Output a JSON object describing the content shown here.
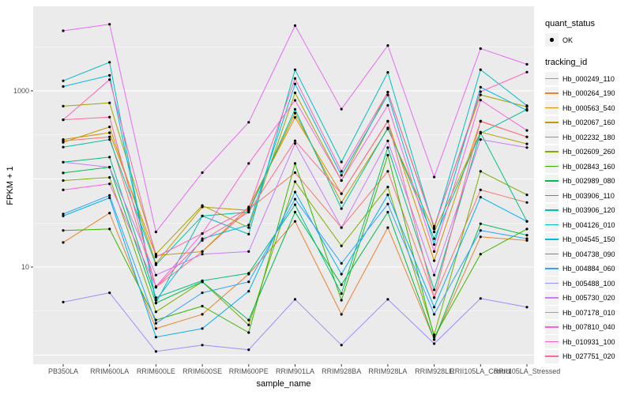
{
  "figure": {
    "background": "#FFFFFF",
    "panel_background": "#EBEBEB",
    "grid_color": "#FFFFFF",
    "tick_label_color": "#4D4D4D",
    "tick_mark_color": "#333333",
    "point_color": "#000000"
  },
  "legend": {
    "quant_status": {
      "title": "quant_status",
      "items": [
        {
          "label": "OK"
        }
      ]
    },
    "tracking_id": {
      "title": "tracking_id"
    }
  },
  "chart_data": {
    "type": "line",
    "title": "",
    "xlabel": "sample_name",
    "ylabel": "FPKM + 1",
    "yscale": "log10",
    "ylim": [
      0.8,
      9000
    ],
    "ytick_values": [
      10,
      1000
    ],
    "ytick_labels": [
      "10",
      "1000"
    ],
    "grid_major_values": [
      1,
      10,
      100,
      1000
    ],
    "grid_minor_values": [
      3.162,
      31.62,
      316.2,
      3162
    ],
    "legend_position": "right",
    "categories": [
      "PB350LA",
      "RRIM600LA",
      "RRIM600LE",
      "RRIM600SE",
      "RRIM600PE",
      "RRIM901LA",
      "RRIM928BA",
      "RRIM928LA",
      "RRIM928LE",
      "RRII105LA_Control",
      "RRII105LA_Stressed"
    ],
    "series": [
      {
        "name": "Hb_000249_110",
        "color": "#F8766D",
        "quant_status": "OK",
        "values": [
          270,
          300,
          5.9,
          15,
          45,
          118,
          28,
          122,
          4.5,
          75,
          54
        ]
      },
      {
        "name": "Hb_000264_190",
        "color": "#EA8331",
        "quant_status": "OK",
        "values": [
          19,
          41,
          2.0,
          2.9,
          8.3,
          33,
          2.9,
          28,
          1.5,
          22,
          20
        ]
      },
      {
        "name": "Hb_000563_540",
        "color": "#D89000",
        "quant_status": "OK",
        "values": [
          280,
          335,
          13.5,
          15,
          48,
          500,
          68,
          450,
          11.8,
          450,
          300
        ]
      },
      {
        "name": "Hb_002067_160",
        "color": "#C09B00",
        "quant_status": "OK",
        "values": [
          260,
          390,
          11,
          48,
          44,
          560,
          54,
          370,
          25,
          340,
          250
        ]
      },
      {
        "name": "Hb_002232_180",
        "color": "#A3A500",
        "quant_status": "OK",
        "values": [
          670,
          730,
          14,
          50,
          28,
          950,
          96,
          970,
          29,
          900,
          660
        ]
      },
      {
        "name": "Hb_002609_260",
        "color": "#7CAE00",
        "quant_status": "OK",
        "values": [
          96,
          104,
          3.1,
          6.8,
          2.2,
          93,
          17.4,
          81,
          1.7,
          122,
          66
        ]
      },
      {
        "name": "Hb_002843_160",
        "color": "#39B600",
        "quant_status": "OK",
        "values": [
          26,
          27,
          2.5,
          3.6,
          1.8,
          150,
          4.2,
          186,
          1.6,
          14,
          27
        ]
      },
      {
        "name": "Hb_002989_080",
        "color": "#00BB4E",
        "quant_status": "OK",
        "values": [
          117,
          136,
          3.9,
          6.8,
          2.5,
          42,
          6.3,
          42,
          1.5,
          31,
          23
        ]
      },
      {
        "name": "Hb_003906_110",
        "color": "#00BF7D",
        "quant_status": "OK",
        "values": [
          155,
          177,
          4.5,
          7.0,
          8.5,
          51,
          5.0,
          227,
          5.5,
          333,
          33
        ]
      },
      {
        "name": "Hb_003906_120",
        "color": "#00C1A3",
        "quant_status": "OK",
        "values": [
          230,
          280,
          10.6,
          38,
          42,
          617,
          46,
          380,
          21,
          330,
          615
        ]
      },
      {
        "name": "Hb_004126_010",
        "color": "#00BFC4",
        "quant_status": "OK",
        "values": [
          1300,
          2110,
          3.9,
          38,
          23.6,
          1740,
          156,
          1620,
          27,
          1740,
          680
        ]
      },
      {
        "name": "Hb_004545_150",
        "color": "#00BAE0",
        "quant_status": "OK",
        "values": [
          1120,
          1500,
          4.2,
          21,
          30,
          1200,
          110,
          900,
          18,
          1100,
          600
        ]
      },
      {
        "name": "Hb_004738_090",
        "color": "#00B0F6",
        "quant_status": "OK",
        "values": [
          38,
          61,
          1.6,
          2.0,
          5.3,
          71,
          8.3,
          66,
          3.5,
          62,
          33
        ]
      },
      {
        "name": "Hb_004884_060",
        "color": "#35A2FF",
        "quant_status": "OK",
        "values": [
          40,
          65,
          2.3,
          5.1,
          6.8,
          59,
          11,
          52,
          2.9,
          26,
          21
        ]
      },
      {
        "name": "Hb_005488_100",
        "color": "#9590FF",
        "quant_status": "OK",
        "values": [
          4.0,
          5.1,
          1.1,
          1.3,
          1.15,
          4.3,
          1.3,
          4.3,
          1.35,
          4.4,
          3.5
        ]
      },
      {
        "name": "Hb_005730_020",
        "color": "#C77CFF",
        "quant_status": "OK",
        "values": [
          155,
          136,
          8.1,
          14,
          15,
          253,
          28,
          270,
          8.1,
          280,
          227
        ]
      },
      {
        "name": "Hb_007178_010",
        "color": "#E76BF3",
        "quant_status": "OK",
        "values": [
          4800,
          5700,
          25,
          118,
          440,
          5500,
          620,
          3270,
          105,
          3020,
          2000
        ]
      },
      {
        "name": "Hb_007810_040",
        "color": "#FA62DB",
        "quant_status": "OK",
        "values": [
          75,
          88,
          6.0,
          24,
          150,
          780,
          96,
          685,
          15,
          785,
          355
        ]
      },
      {
        "name": "Hb_010931_100",
        "color": "#FF62BC",
        "quant_status": "OK",
        "values": [
          470,
          1340,
          13,
          24,
          46,
          1380,
          122,
          966,
          28,
          978,
          1630
        ]
      },
      {
        "name": "Hb_027751_020",
        "color": "#FF6A98",
        "quant_status": "OK",
        "values": [
          470,
          504,
          5.9,
          20,
          42,
          271,
          68,
          454,
          4.5,
          454,
          300
        ]
      }
    ]
  }
}
